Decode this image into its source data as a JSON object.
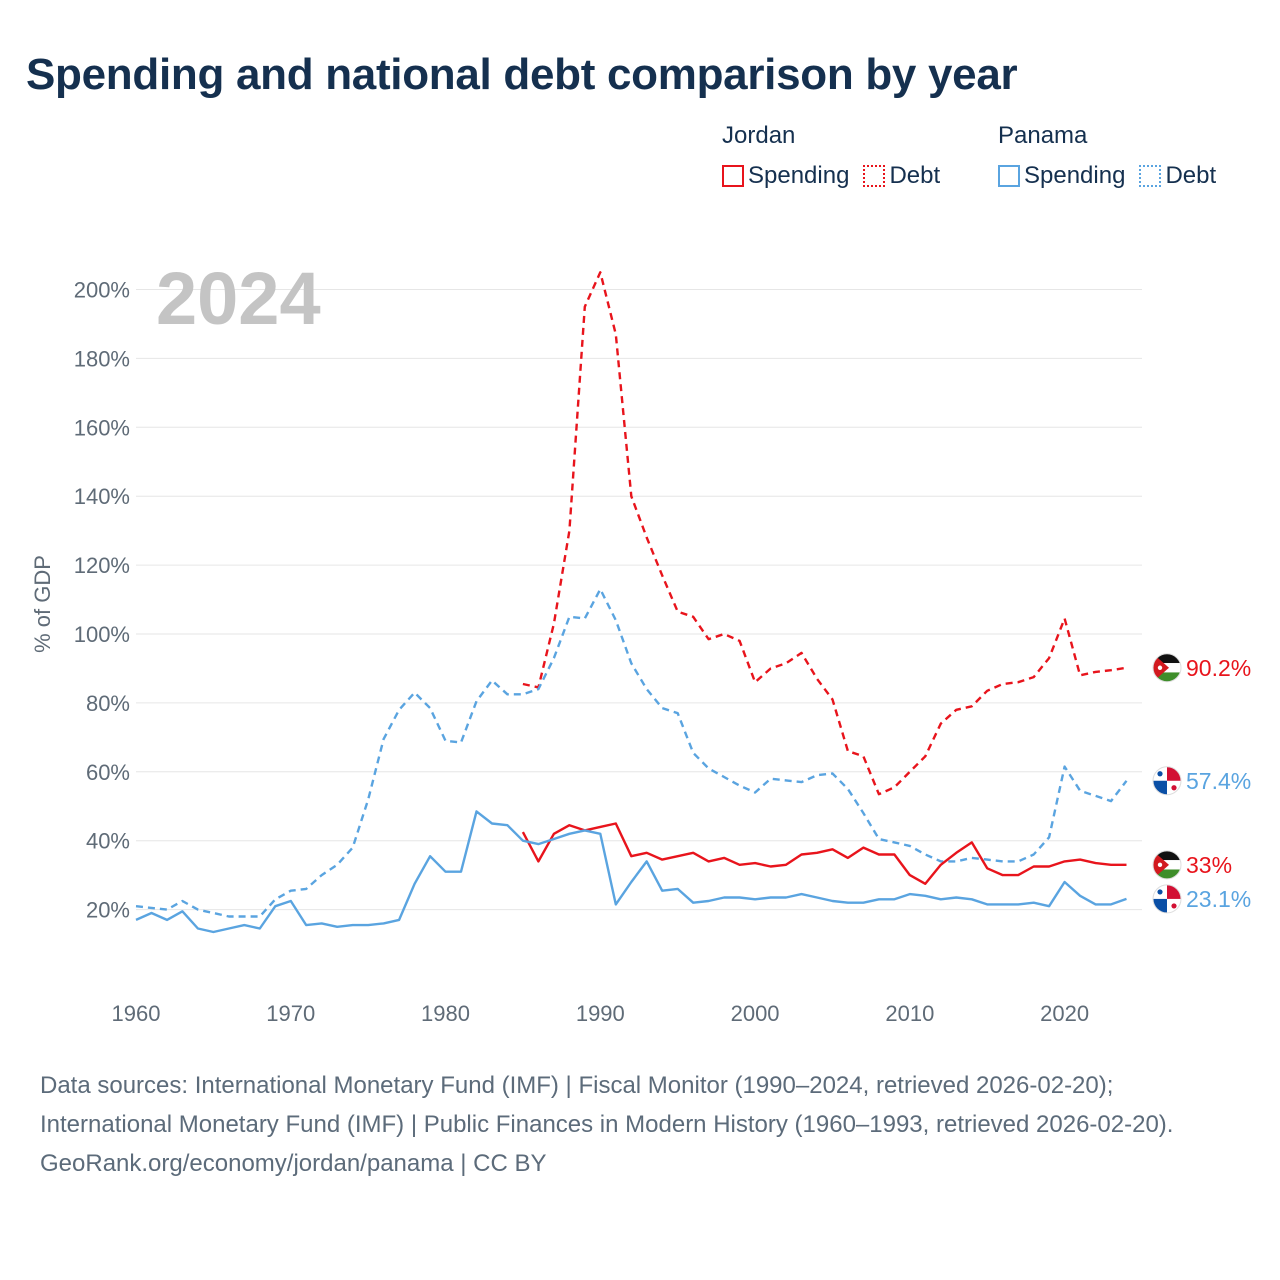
{
  "title": "Spending and national debt comparison by year",
  "legend": {
    "groups": [
      {
        "name": "Jordan",
        "color": "#e8141c",
        "items": [
          "Spending",
          "Debt"
        ]
      },
      {
        "name": "Panama",
        "color": "#5aa4e0",
        "items": [
          "Spending",
          "Debt"
        ]
      }
    ]
  },
  "sources": {
    "line1": "Data sources: International Monetary Fund (IMF) | Fiscal Monitor (1990–2024, retrieved 2026-02-20); International Monetary Fund (IMF) | Public Finances in Modern History (1960–1993, retrieved 2026-02-20).",
    "line2": "GeoRank.org/economy/jordan/panama | CC BY"
  },
  "chart_data": {
    "type": "line",
    "ylabel": "% of GDP",
    "year_label": "2024",
    "xlim": [
      1960,
      2025
    ],
    "ylim": [
      0,
      210
    ],
    "x_ticks": [
      1960,
      1970,
      1980,
      1990,
      2000,
      2010,
      2020
    ],
    "y_ticks": [
      20,
      40,
      60,
      80,
      100,
      120,
      140,
      160,
      180,
      200
    ],
    "series": [
      {
        "name": "Jordan Debt",
        "country": "Jordan",
        "metric": "Debt",
        "style": "dashed",
        "color": "#e8141c",
        "end_label": "90.2%",
        "flag": "jordan",
        "x": [
          1985,
          1986,
          1987,
          1988,
          1989,
          1990,
          1991,
          1992,
          1993,
          1994,
          1995,
          1996,
          1997,
          1998,
          1999,
          2000,
          2001,
          2002,
          2003,
          2004,
          2005,
          2006,
          2007,
          2008,
          2009,
          2010,
          2011,
          2012,
          2013,
          2014,
          2015,
          2016,
          2017,
          2018,
          2019,
          2020,
          2021,
          2022,
          2023,
          2024
        ],
        "y": [
          85.5,
          84.5,
          103,
          130,
          195,
          205,
          187,
          140,
          128,
          117,
          106.5,
          105,
          98.5,
          100,
          98,
          86,
          90,
          91.5,
          94.5,
          87,
          81,
          66,
          64.5,
          53.5,
          55.5,
          60,
          64.5,
          74,
          78,
          79,
          83.5,
          85.5,
          86,
          87.5,
          93,
          104.5,
          88,
          89,
          89.5,
          90.2
        ]
      },
      {
        "name": "Panama Debt",
        "country": "Panama",
        "metric": "Debt",
        "style": "dashed",
        "color": "#5aa4e0",
        "end_label": "57.4%",
        "flag": "panama",
        "x": [
          1960,
          1961,
          1962,
          1963,
          1964,
          1965,
          1966,
          1967,
          1968,
          1969,
          1970,
          1971,
          1972,
          1973,
          1974,
          1975,
          1976,
          1977,
          1978,
          1979,
          1980,
          1981,
          1982,
          1983,
          1984,
          1985,
          1986,
          1987,
          1988,
          1989,
          1990,
          1991,
          1992,
          1993,
          1994,
          1995,
          1996,
          1997,
          1998,
          1999,
          2000,
          2001,
          2002,
          2003,
          2004,
          2005,
          2006,
          2007,
          2008,
          2009,
          2010,
          2011,
          2012,
          2013,
          2014,
          2015,
          2016,
          2017,
          2018,
          2019,
          2020,
          2021,
          2022,
          2023,
          2024
        ],
        "y": [
          21,
          20.5,
          20,
          22.5,
          20,
          19,
          18,
          18,
          18,
          23,
          25.5,
          26,
          30,
          33,
          38,
          52,
          69.5,
          78,
          83,
          78.5,
          69,
          68.5,
          80.5,
          86.5,
          82.5,
          82.5,
          84,
          93,
          105,
          104.5,
          113,
          104,
          91.5,
          84,
          78.5,
          77,
          65.5,
          61,
          58.5,
          56,
          54,
          58,
          57.5,
          57,
          59,
          59.5,
          55,
          48,
          40.5,
          39.5,
          38.5,
          36,
          34,
          34,
          35,
          34.5,
          34,
          34,
          36,
          41,
          61.5,
          54.5,
          53,
          51.5,
          57.4
        ]
      },
      {
        "name": "Jordan Spending",
        "country": "Jordan",
        "metric": "Spending",
        "style": "solid",
        "color": "#e8141c",
        "end_label": "33%",
        "flag": "jordan",
        "x": [
          1985,
          1986,
          1987,
          1988,
          1989,
          1990,
          1991,
          1992,
          1993,
          1994,
          1995,
          1996,
          1997,
          1998,
          1999,
          2000,
          2001,
          2002,
          2003,
          2004,
          2005,
          2006,
          2007,
          2008,
          2009,
          2010,
          2011,
          2012,
          2013,
          2014,
          2015,
          2016,
          2017,
          2018,
          2019,
          2020,
          2021,
          2022,
          2023,
          2024
        ],
        "y": [
          42.5,
          34,
          42,
          44.5,
          43,
          44,
          45,
          35.5,
          36.5,
          34.5,
          35.5,
          36.5,
          34,
          35,
          33,
          33.5,
          32.5,
          33,
          36,
          36.5,
          37.5,
          35,
          38,
          36,
          36,
          30,
          27.5,
          33,
          36.5,
          39.5,
          32,
          30,
          30,
          32.5,
          32.5,
          34,
          34.5,
          33.5,
          33,
          33
        ]
      },
      {
        "name": "Panama Spending",
        "country": "Panama",
        "metric": "Spending",
        "style": "solid",
        "color": "#5aa4e0",
        "end_label": "23.1%",
        "flag": "panama",
        "x": [
          1960,
          1961,
          1962,
          1963,
          1964,
          1965,
          1966,
          1967,
          1968,
          1969,
          1970,
          1971,
          1972,
          1973,
          1974,
          1975,
          1976,
          1977,
          1978,
          1979,
          1980,
          1981,
          1982,
          1983,
          1984,
          1985,
          1986,
          1987,
          1988,
          1989,
          1990,
          1991,
          1992,
          1993,
          1994,
          1995,
          1996,
          1997,
          1998,
          1999,
          2000,
          2001,
          2002,
          2003,
          2004,
          2005,
          2006,
          2007,
          2008,
          2009,
          2010,
          2011,
          2012,
          2013,
          2014,
          2015,
          2016,
          2017,
          2018,
          2019,
          2020,
          2021,
          2022,
          2023,
          2024
        ],
        "y": [
          17,
          19,
          17,
          19.5,
          14.5,
          13.5,
          14.5,
          15.5,
          14.5,
          21,
          22.5,
          15.5,
          16,
          15,
          15.5,
          15.5,
          16,
          17,
          27.5,
          35.5,
          31,
          31,
          48.5,
          45,
          44.5,
          40,
          39,
          40.5,
          42,
          43,
          42,
          21.5,
          28,
          34,
          25.5,
          26,
          22,
          22.5,
          23.5,
          23.5,
          23,
          23.5,
          23.5,
          24.5,
          23.5,
          22.5,
          22,
          22,
          23,
          23,
          24.5,
          24,
          23,
          23.5,
          23,
          21.5,
          21.5,
          21.5,
          22,
          21,
          28,
          24,
          21.5,
          21.5,
          23.1
        ]
      }
    ]
  }
}
